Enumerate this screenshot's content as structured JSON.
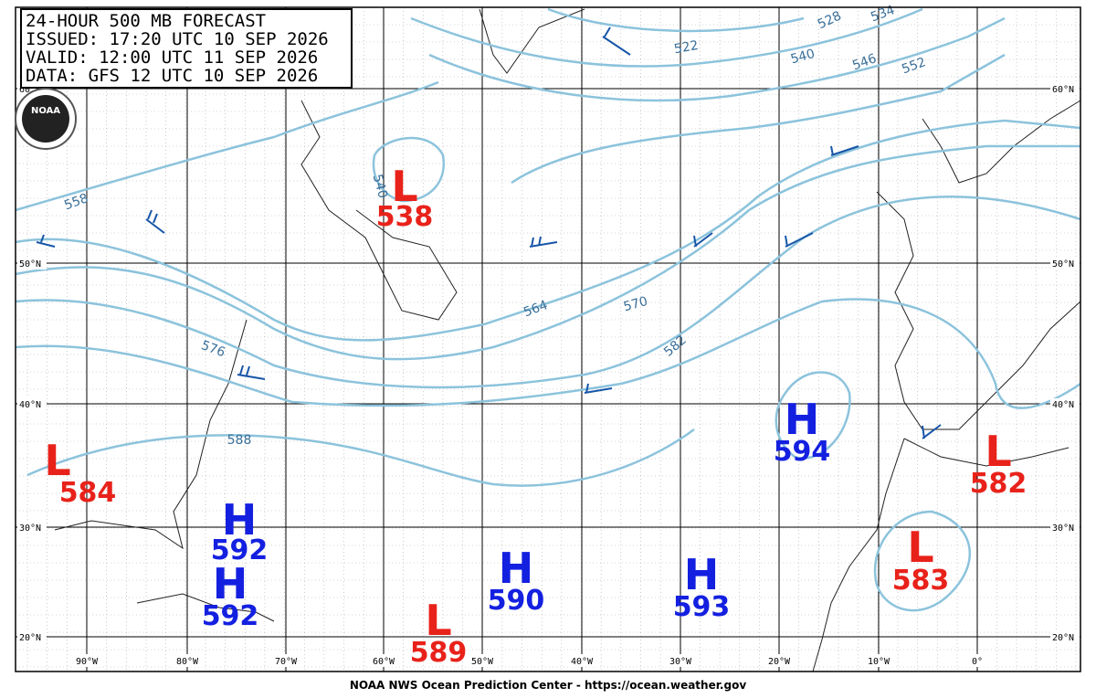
{
  "header": {
    "lines": [
      "24-HOUR 500 MB FORECAST",
      "ISSUED: 17:20 UTC 10 SEP 2026",
      "VALID:  12:00 UTC 11 SEP 2026",
      "DATA:  GFS 12 UTC 10 SEP 2026"
    ]
  },
  "logo": "NOAA",
  "centers": [
    {
      "letter": "L",
      "value": 538
    },
    {
      "letter": "L",
      "value": 584
    },
    {
      "letter": "H",
      "value": 592
    },
    {
      "letter": "H",
      "value": 592
    },
    {
      "letter": "L",
      "value": 589
    },
    {
      "letter": "H",
      "value": 590
    },
    {
      "letter": "H",
      "value": 593
    },
    {
      "letter": "H",
      "value": 594
    },
    {
      "letter": "L",
      "value": 582
    },
    {
      "letter": "L",
      "value": 583
    }
  ],
  "contour_labels": [
    "558",
    "540",
    "522",
    "528",
    "534",
    "540",
    "546",
    "552",
    "564",
    "570",
    "582",
    "576",
    "588"
  ],
  "lat_labels": [
    "60°N",
    "50°N",
    "40°N",
    "30°N",
    "20°N"
  ],
  "lon_labels": [
    "90°W",
    "80°W",
    "70°W",
    "60°W",
    "50°W",
    "40°W",
    "30°W",
    "20°W",
    "10°W",
    "0°"
  ],
  "footer": "NOAA NWS Ocean Prediction Center - https://ocean.weather.gov"
}
